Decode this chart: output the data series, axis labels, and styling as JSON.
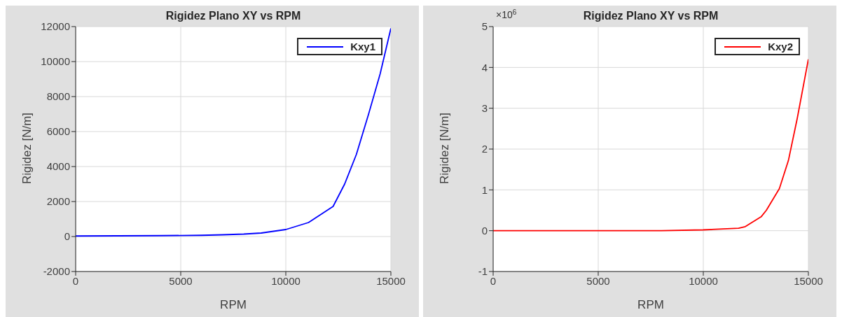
{
  "chart_data": [
    {
      "type": "line",
      "title": "Rigidez Plano XY vs RPM",
      "xlabel": "RPM",
      "ylabel": "Rigidez [N/m]",
      "x": [
        0,
        2000,
        4000,
        6000,
        7000,
        8000,
        8830,
        10000,
        11080,
        12250,
        12800,
        13360,
        13940,
        14490,
        15000
      ],
      "series": [
        {
          "name": "Kxy1",
          "color": "#0000ff",
          "values": [
            30,
            40,
            50,
            70,
            100,
            140,
            200,
            400,
            800,
            1720,
            3000,
            4700,
            7000,
            9300,
            11900
          ]
        }
      ],
      "xlim": [
        0,
        15000
      ],
      "xticks": [
        0,
        5000,
        10000,
        15000
      ],
      "ylim": [
        -2000,
        12000
      ],
      "yticks": [
        -2000,
        0,
        2000,
        4000,
        6000,
        8000,
        10000,
        12000
      ],
      "grid": true,
      "legend": "top right",
      "marker": "none",
      "line_style": "solid"
    },
    {
      "type": "line",
      "title": "Rigidez Plano XY vs RPM",
      "xlabel": "RPM",
      "ylabel": "Rigidez [N/m]",
      "annotations": [
        "×10$^{6}$"
      ],
      "x": [
        0,
        5000,
        8000,
        10000,
        11680,
        12000,
        12750,
        13000,
        13620,
        14050,
        14470,
        15000
      ],
      "series": [
        {
          "name": "Kxy2",
          "color": "#ff0000",
          "values": [
            0,
            0,
            0,
            0.02,
            0.06,
            0.1,
            0.34,
            0.5,
            1.03,
            1.72,
            2.75,
            4.2
          ]
        }
      ],
      "xlim": [
        0,
        15000
      ],
      "xticks": [
        0,
        5000,
        10000,
        15000
      ],
      "ylim": [
        -1,
        5
      ],
      "yticks": [
        -1,
        0,
        1,
        2,
        3,
        4,
        5
      ],
      "grid": true,
      "legend": "top right",
      "marker": "none",
      "line_style": "solid"
    }
  ]
}
